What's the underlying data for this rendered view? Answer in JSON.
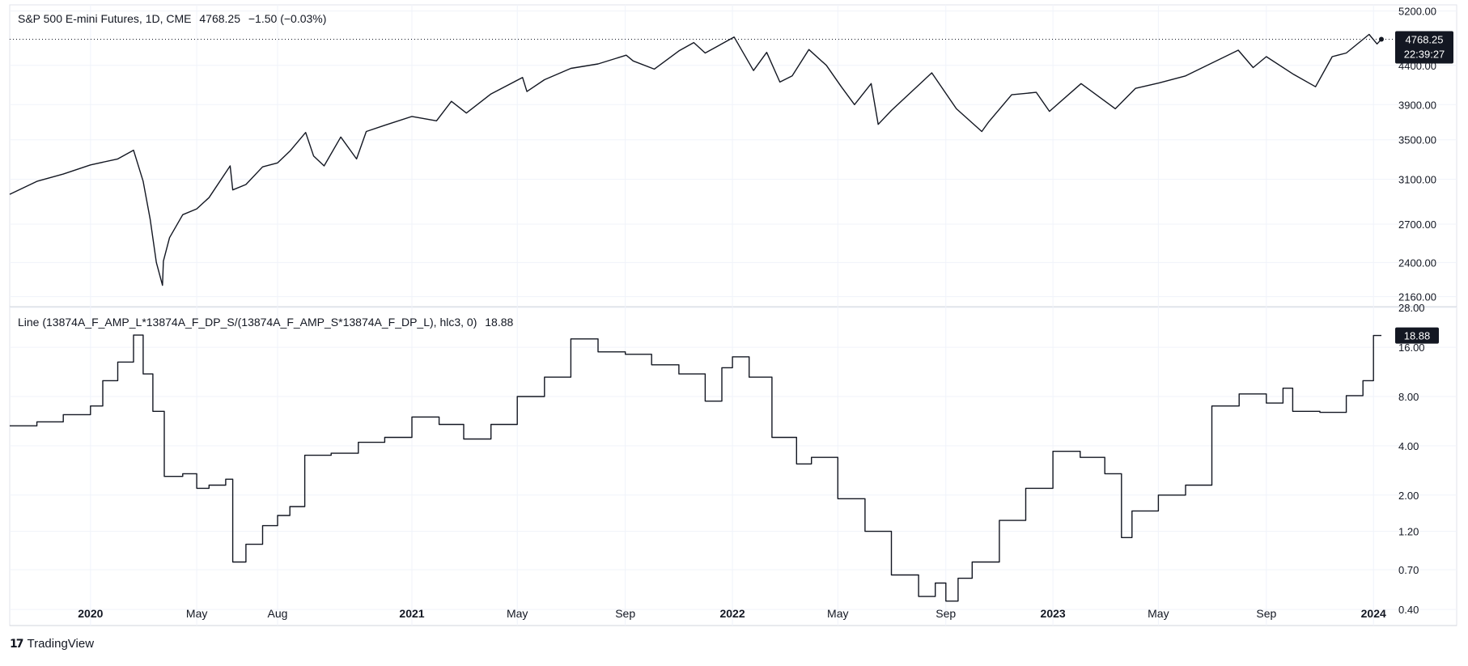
{
  "header": {
    "symbol": "S&P 500 E-mini Futures, 1D, CME",
    "last": "4768.25",
    "change": "−1.50 (−0.03%)"
  },
  "price_badge": {
    "value": "4768.25",
    "countdown": "22:39:27"
  },
  "indicator": {
    "label": "Line (13874A_F_AMP_L*13874A_F_DP_S/(13874A_F_AMP_S*13874A_F_DP_L), hlc3, 0)",
    "value": "18.88",
    "badge": "18.88"
  },
  "brand": {
    "name": "TradingView"
  },
  "colors": {
    "line": "#131722",
    "grid": "#f0f3fa",
    "badge_bg": "#131722",
    "badge_text": "#ffffff"
  },
  "x_axis": {
    "labels": [
      {
        "text": "2020",
        "date": "2020-01-01",
        "bold": true
      },
      {
        "text": "May",
        "date": "2020-05-01",
        "bold": false
      },
      {
        "text": "Aug",
        "date": "2020-08-01",
        "bold": false
      },
      {
        "text": "2021",
        "date": "2021-01-01",
        "bold": true
      },
      {
        "text": "May",
        "date": "2021-05-01",
        "bold": false
      },
      {
        "text": "Sep",
        "date": "2021-09-01",
        "bold": false
      },
      {
        "text": "2022",
        "date": "2022-01-01",
        "bold": true
      },
      {
        "text": "May",
        "date": "2022-05-01",
        "bold": false
      },
      {
        "text": "Sep",
        "date": "2022-09-01",
        "bold": false
      },
      {
        "text": "2023",
        "date": "2023-01-01",
        "bold": true
      },
      {
        "text": "May",
        "date": "2023-05-01",
        "bold": false
      },
      {
        "text": "Sep",
        "date": "2023-09-01",
        "bold": false
      },
      {
        "text": "2024",
        "date": "2024-01-01",
        "bold": true
      }
    ]
  },
  "chart_data": [
    {
      "type": "line",
      "title": "S&P 500 E-mini Futures, 1D, CME",
      "scale": "log",
      "ylim": [
        2100,
        5300
      ],
      "ticks": [
        "5200.00",
        "4400.00",
        "3900.00",
        "3500.00",
        "3100.00",
        "2700.00",
        "2400.00",
        "2160.00"
      ],
      "x": [
        "2019-10-01",
        "2019-11-01",
        "2019-12-01",
        "2020-01-01",
        "2020-02-01",
        "2020-02-19",
        "2020-03-01",
        "2020-03-09",
        "2020-03-16",
        "2020-03-23",
        "2020-03-24",
        "2020-03-31",
        "2020-04-15",
        "2020-05-01",
        "2020-05-15",
        "2020-06-08",
        "2020-06-11",
        "2020-06-26",
        "2020-07-15",
        "2020-08-01",
        "2020-08-15",
        "2020-09-02",
        "2020-09-11",
        "2020-09-23",
        "2020-10-12",
        "2020-10-30",
        "2020-11-10",
        "2020-12-01",
        "2021-01-01",
        "2021-01-29",
        "2021-02-15",
        "2021-03-04",
        "2021-04-01",
        "2021-05-07",
        "2021-05-12",
        "2021-06-01",
        "2021-07-01",
        "2021-08-01",
        "2021-09-02",
        "2021-09-10",
        "2021-10-04",
        "2021-11-01",
        "2021-11-18",
        "2021-12-01",
        "2022-01-03",
        "2022-01-25",
        "2022-02-09",
        "2022-02-24",
        "2022-03-10",
        "2022-03-29",
        "2022-04-18",
        "2022-05-05",
        "2022-05-20",
        "2022-06-08",
        "2022-06-16",
        "2022-07-01",
        "2022-08-16",
        "2022-09-13",
        "2022-10-12",
        "2022-10-20",
        "2022-11-15",
        "2022-12-13",
        "2022-12-28",
        "2023-02-02",
        "2023-03-13",
        "2023-04-05",
        "2023-05-02",
        "2023-06-01",
        "2023-07-31",
        "2023-08-17",
        "2023-09-01",
        "2023-10-02",
        "2023-10-27",
        "2023-11-15",
        "2023-12-01",
        "2023-12-27",
        "2024-01-05",
        "2024-01-10"
      ],
      "values": [
        2960,
        3080,
        3150,
        3240,
        3300,
        3390,
        3080,
        2740,
        2400,
        2237,
        2410,
        2590,
        2780,
        2830,
        2930,
        3230,
        3000,
        3050,
        3220,
        3260,
        3380,
        3580,
        3330,
        3230,
        3530,
        3300,
        3590,
        3660,
        3760,
        3710,
        3940,
        3800,
        4030,
        4240,
        4060,
        4210,
        4360,
        4420,
        4540,
        4460,
        4350,
        4600,
        4720,
        4570,
        4800,
        4330,
        4580,
        4180,
        4260,
        4620,
        4400,
        4120,
        3900,
        4160,
        3670,
        3830,
        4300,
        3850,
        3590,
        3700,
        4020,
        4050,
        3820,
        4160,
        3850,
        4100,
        4170,
        4260,
        4610,
        4370,
        4520,
        4280,
        4120,
        4520,
        4570,
        4840,
        4700,
        4768
      ]
    },
    {
      "type": "line",
      "title": "Line (13874A_F_AMP_L*13874A_F_DP_S/(13874A_F_AMP_S*13874A_F_DP_L), hlc3, 0)",
      "scale": "log",
      "ylim": [
        0.33,
        28
      ],
      "ticks": [
        "28.00",
        "16.00",
        "8.00",
        "4.00",
        "2.00",
        "1.20",
        "0.70",
        "0.40"
      ],
      "x": [
        "2019-10-01",
        "2019-11-01",
        "2019-12-01",
        "2020-01-01",
        "2020-01-15",
        "2020-02-01",
        "2020-02-19",
        "2020-03-01",
        "2020-03-12",
        "2020-03-25",
        "2020-04-15",
        "2020-05-01",
        "2020-05-15",
        "2020-06-03",
        "2020-06-11",
        "2020-06-26",
        "2020-07-15",
        "2020-08-01",
        "2020-08-15",
        "2020-09-01",
        "2020-10-01",
        "2020-11-01",
        "2020-12-01",
        "2021-01-01",
        "2021-02-01",
        "2021-03-01",
        "2021-04-01",
        "2021-05-01",
        "2021-06-01",
        "2021-07-01",
        "2021-08-01",
        "2021-09-01",
        "2021-10-01",
        "2021-11-01",
        "2021-12-01",
        "2021-12-20",
        "2022-01-01",
        "2022-01-20",
        "2022-02-15",
        "2022-03-15",
        "2022-04-01",
        "2022-05-01",
        "2022-06-01",
        "2022-07-01",
        "2022-08-01",
        "2022-08-20",
        "2022-09-01",
        "2022-09-15",
        "2022-10-01",
        "2022-11-01",
        "2022-12-01",
        "2023-01-01",
        "2023-02-01",
        "2023-03-01",
        "2023-03-20",
        "2023-04-01",
        "2023-05-01",
        "2023-06-01",
        "2023-07-01",
        "2023-08-01",
        "2023-09-01",
        "2023-09-20",
        "2023-10-01",
        "2023-11-01",
        "2023-12-01",
        "2023-12-20",
        "2024-01-01",
        "2024-01-10"
      ],
      "values": [
        5.3,
        5.6,
        6.2,
        7,
        10,
        13,
        19,
        11,
        6.5,
        2.6,
        2.7,
        2.2,
        2.3,
        2.5,
        0.78,
        1.0,
        1.3,
        1.5,
        1.7,
        3.5,
        3.6,
        4.2,
        4.5,
        6,
        5.4,
        4.4,
        5.4,
        8,
        10.5,
        18,
        15,
        14.5,
        12.5,
        11,
        7.5,
        12,
        14,
        10.5,
        4.5,
        3.1,
        3.4,
        1.9,
        1.2,
        0.65,
        0.48,
        0.58,
        0.45,
        0.62,
        0.78,
        1.4,
        2.2,
        3.7,
        3.4,
        2.7,
        1.1,
        1.6,
        2.0,
        2.3,
        7,
        8.3,
        7.3,
        9,
        6.5,
        6.4,
        8.1,
        10,
        18.88,
        18.88
      ]
    }
  ]
}
